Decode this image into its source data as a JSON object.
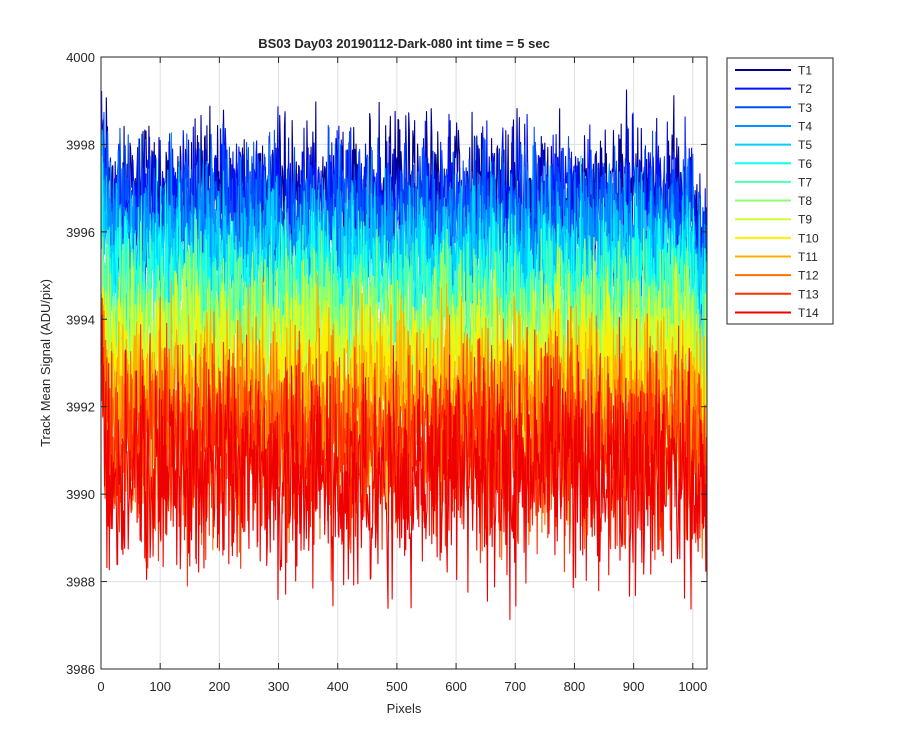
{
  "chart_data": {
    "type": "line",
    "title": "BS03 Day03 20190112-Dark-080 int time = 5 sec",
    "xlabel": "Pixels",
    "ylabel": "Track Mean Signal (ADU/pix)",
    "xlim": [
      0,
      1024
    ],
    "ylim": [
      3986,
      4000
    ],
    "xticks": [
      0,
      100,
      200,
      300,
      400,
      500,
      600,
      700,
      800,
      900,
      1000
    ],
    "yticks": [
      3986,
      3988,
      3990,
      3992,
      3994,
      3996,
      3998,
      4000
    ],
    "grid": true,
    "legend_position": "outside-top-right",
    "series": [
      {
        "name": "T1",
        "color": "#00008f",
        "mean": 3996.9,
        "noise": 0.75
      },
      {
        "name": "T2",
        "color": "#0010ff",
        "mean": 3996.6,
        "noise": 0.75
      },
      {
        "name": "T3",
        "color": "#0050ff",
        "mean": 3996.3,
        "noise": 0.8
      },
      {
        "name": "T4",
        "color": "#0090ff",
        "mean": 3995.8,
        "noise": 0.8
      },
      {
        "name": "T5",
        "color": "#00d0ff",
        "mean": 3995.3,
        "noise": 0.85
      },
      {
        "name": "T6",
        "color": "#10ffef",
        "mean": 3994.7,
        "noise": 0.85
      },
      {
        "name": "T7",
        "color": "#50ffaf",
        "mean": 3994.1,
        "noise": 0.9
      },
      {
        "name": "T8",
        "color": "#90ff6f",
        "mean": 3993.6,
        "noise": 0.9
      },
      {
        "name": "T9",
        "color": "#cfff30",
        "mean": 3993.1,
        "noise": 0.95
      },
      {
        "name": "T10",
        "color": "#ffef00",
        "mean": 3992.6,
        "noise": 0.95
      },
      {
        "name": "T11",
        "color": "#ffaf00",
        "mean": 3992.1,
        "noise": 1.0
      },
      {
        "name": "T12",
        "color": "#ff7000",
        "mean": 3991.5,
        "noise": 1.0
      },
      {
        "name": "T13",
        "color": "#ff3000",
        "mean": 3991.0,
        "noise": 1.05
      },
      {
        "name": "T14",
        "color": "#ef0000",
        "mean": 3990.5,
        "noise": 1.1
      }
    ]
  }
}
